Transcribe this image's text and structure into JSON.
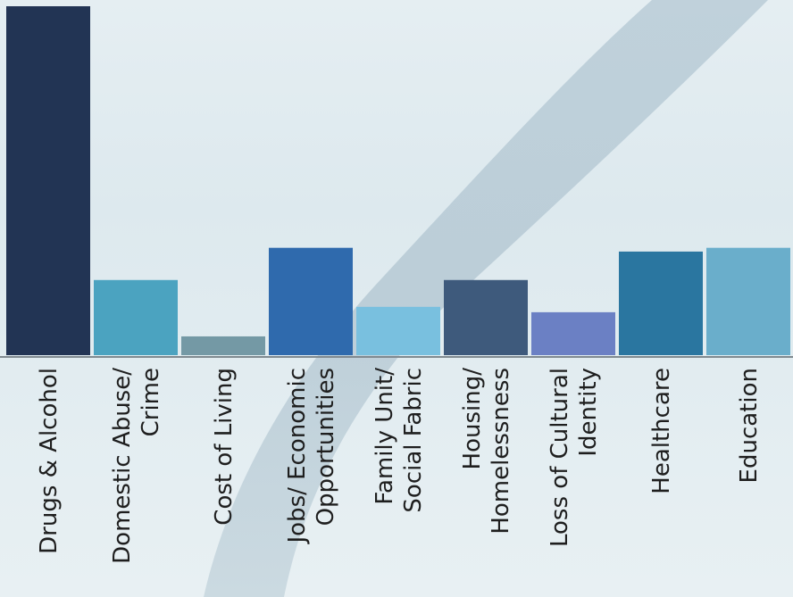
{
  "chart_data": {
    "type": "bar",
    "title": "",
    "xlabel": "",
    "ylabel": "",
    "ylim": [
      0,
      65
    ],
    "grid": false,
    "legend": "none",
    "categories": [
      [
        "Drugs & Alcohol"
      ],
      [
        "Domestic Abuse/",
        "Crime"
      ],
      [
        "Cost of Living"
      ],
      [
        "Jobs/ Economic",
        "Opportunities"
      ],
      [
        "Family Unit/",
        "Social Fabric"
      ],
      [
        "Housing/",
        "Homelessness"
      ],
      [
        "Loss of Cultural",
        "Identity"
      ],
      [
        "Healthcare"
      ],
      [
        "Education"
      ]
    ],
    "values": [
      65,
      14,
      3.5,
      20,
      9,
      14,
      8,
      19.3,
      20
    ],
    "colors": [
      "#223454",
      "#4ba3c0",
      "#7499a5",
      "#2f6aad",
      "#79c0df",
      "#3e5a7c",
      "#6b80c4",
      "#2a76a0",
      "#6aaecb"
    ]
  }
}
